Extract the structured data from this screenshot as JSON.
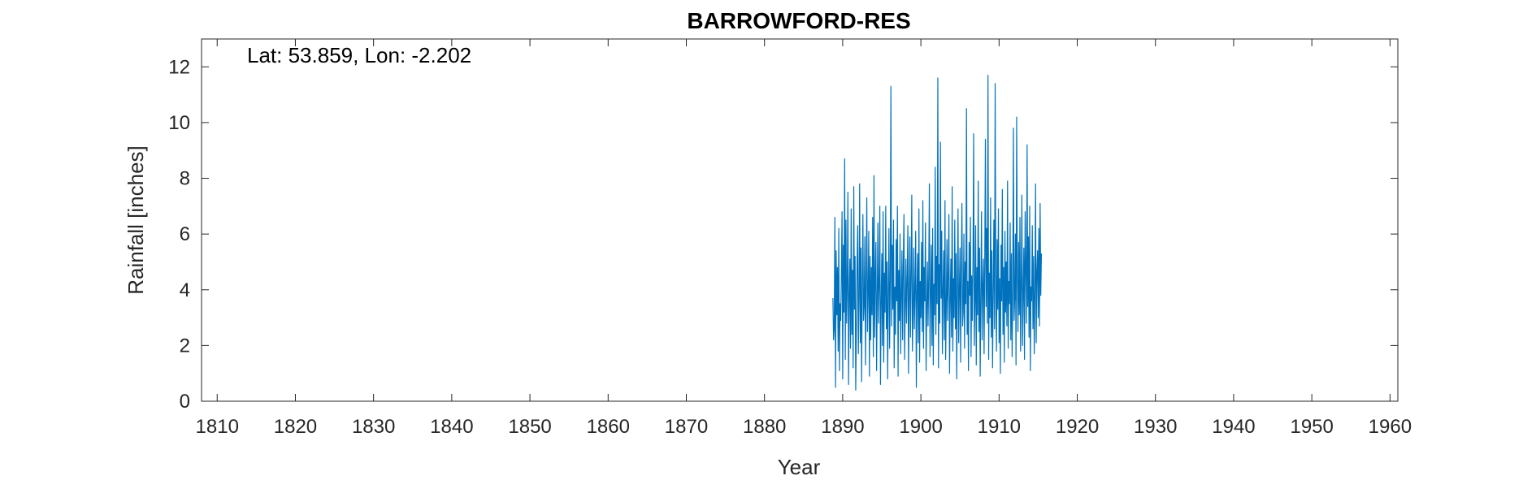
{
  "chart_data": {
    "type": "line",
    "title": "BARROWFORD-RES",
    "xlabel": "Year",
    "ylabel": "Rainfall [inches]",
    "annotation": "Lat: 53.859, Lon: -2.202",
    "xlim": [
      1808,
      1961
    ],
    "ylim": [
      0,
      13
    ],
    "x_ticks": [
      1810,
      1820,
      1830,
      1840,
      1850,
      1860,
      1870,
      1880,
      1890,
      1900,
      1910,
      1920,
      1930,
      1940,
      1950,
      1960
    ],
    "y_ticks": [
      0,
      2,
      4,
      6,
      8,
      10,
      12
    ],
    "grid": false,
    "series_color": "#0072BD",
    "series": [
      {
        "x_start": 1888.75,
        "x_step": 0.0833333,
        "values": [
          3.7,
          2.2,
          2.6,
          6.6,
          0.5,
          5.4,
          3.1,
          4.8,
          1.8,
          6.2,
          1.1,
          3.5,
          2.9,
          4.6,
          6.8,
          0.8,
          5.6,
          3.2,
          8.7,
          1.5,
          6.5,
          2.8,
          4.2,
          7.5,
          0.6,
          3.8,
          5.1,
          1.9,
          6.9,
          2.4,
          4.7,
          1.2,
          7.7,
          3.3,
          5.2,
          0.4,
          2.7,
          4.9,
          6.3,
          1.7,
          3.6,
          7.8,
          2.1,
          5.5,
          0.7,
          4.1,
          6.7,
          2.9,
          3.4,
          5.9,
          1.3,
          4.4,
          7.3,
          2.5,
          3.9,
          6.1,
          0.9,
          5.2,
          2.2,
          4.8,
          3.1,
          6.6,
          1.6,
          8.1,
          2.3,
          4.5,
          5.7,
          1.1,
          3.7,
          6.4,
          2.8,
          4.2,
          7.0,
          0.6,
          3.5,
          5.3,
          2.0,
          6.8,
          1.4,
          4.6,
          3.2,
          7.0,
          2.6,
          5.0,
          0.8,
          3.9,
          6.2,
          1.9,
          4.3,
          11.3,
          2.7,
          5.6,
          3.3,
          6.5,
          1.2,
          4.1,
          2.4,
          5.8,
          3.6,
          7.0,
          0.9,
          4.7,
          2.9,
          6.0,
          1.7,
          3.8,
          5.4,
          2.2,
          4.9,
          6.7,
          1.5,
          3.4,
          5.1,
          2.8,
          4.4,
          6.3,
          1.0,
          3.7,
          5.9,
          2.3,
          4.6,
          7.4,
          1.8,
          3.2,
          5.5,
          2.6,
          4.1,
          6.1,
          0.5,
          3.9,
          5.3,
          2.1,
          6.9,
          1.4,
          4.3,
          3.0,
          5.7,
          2.5,
          7.2,
          1.9,
          4.8,
          3.6,
          6.4,
          1.1,
          3.3,
          5.0,
          2.7,
          4.5,
          7.8,
          1.6,
          3.8,
          5.6,
          2.0,
          6.2,
          1.3,
          4.2,
          3.1,
          8.4,
          2.4,
          5.2,
          3.5,
          11.6,
          1.2,
          4.9,
          2.8,
          9.3,
          3.7,
          6.1,
          1.7,
          4.0,
          5.4,
          2.2,
          7.2,
          1.5,
          3.4,
          5.8,
          2.9,
          4.6,
          6.7,
          1.0,
          3.6,
          5.1,
          2.3,
          7.7,
          1.8,
          4.4,
          3.0,
          6.5,
          2.6,
          5.3,
          0.8,
          4.1,
          6.9,
          2.1,
          3.9,
          5.5,
          1.4,
          4.7,
          7.1,
          2.7,
          3.2,
          6.0,
          1.9,
          5.0,
          3.5,
          10.5,
          2.4,
          4.3,
          1.1,
          5.7,
          3.8,
          6.6,
          1.6,
          4.5,
          2.9,
          5.2,
          9.6,
          2.0,
          3.6,
          6.3,
          1.3,
          4.8,
          3.1,
          7.9,
          2.5,
          5.5,
          0.9,
          3.7,
          6.8,
          2.2,
          4.2,
          5.1,
          1.7,
          4.9,
          9.4,
          3.4,
          6.2,
          2.8,
          11.7,
          1.5,
          4.6,
          3.0,
          7.3,
          2.3,
          5.4,
          1.2,
          3.9,
          6.5,
          2.6,
          11.4,
          4.1,
          1.8,
          5.8,
          3.3,
          6.9,
          2.1,
          4.4,
          1.0,
          5.6,
          3.6,
          7.6,
          2.4,
          4.8,
          1.4,
          6.1,
          3.2,
          5.0,
          2.7,
          7.9,
          1.9,
          4.3,
          3.5,
          6.4,
          2.2,
          5.3,
          1.6,
          4.0,
          9.8,
          2.9,
          3.7,
          6.0,
          1.3,
          10.2,
          4.5,
          2.5,
          5.7,
          3.1,
          6.6,
          1.8,
          4.2,
          7.4,
          2.0,
          3.8,
          5.5,
          1.5,
          6.8,
          4.7,
          2.8,
          9.2,
          3.4,
          5.9,
          2.3,
          7.0,
          1.1,
          4.1,
          3.6,
          6.3,
          2.6,
          5.2,
          1.7,
          3.9,
          7.8,
          2.1,
          4.6,
          5.4,
          3.0,
          6.2,
          2.7,
          7.1,
          3.8,
          5.3
        ]
      }
    ]
  }
}
